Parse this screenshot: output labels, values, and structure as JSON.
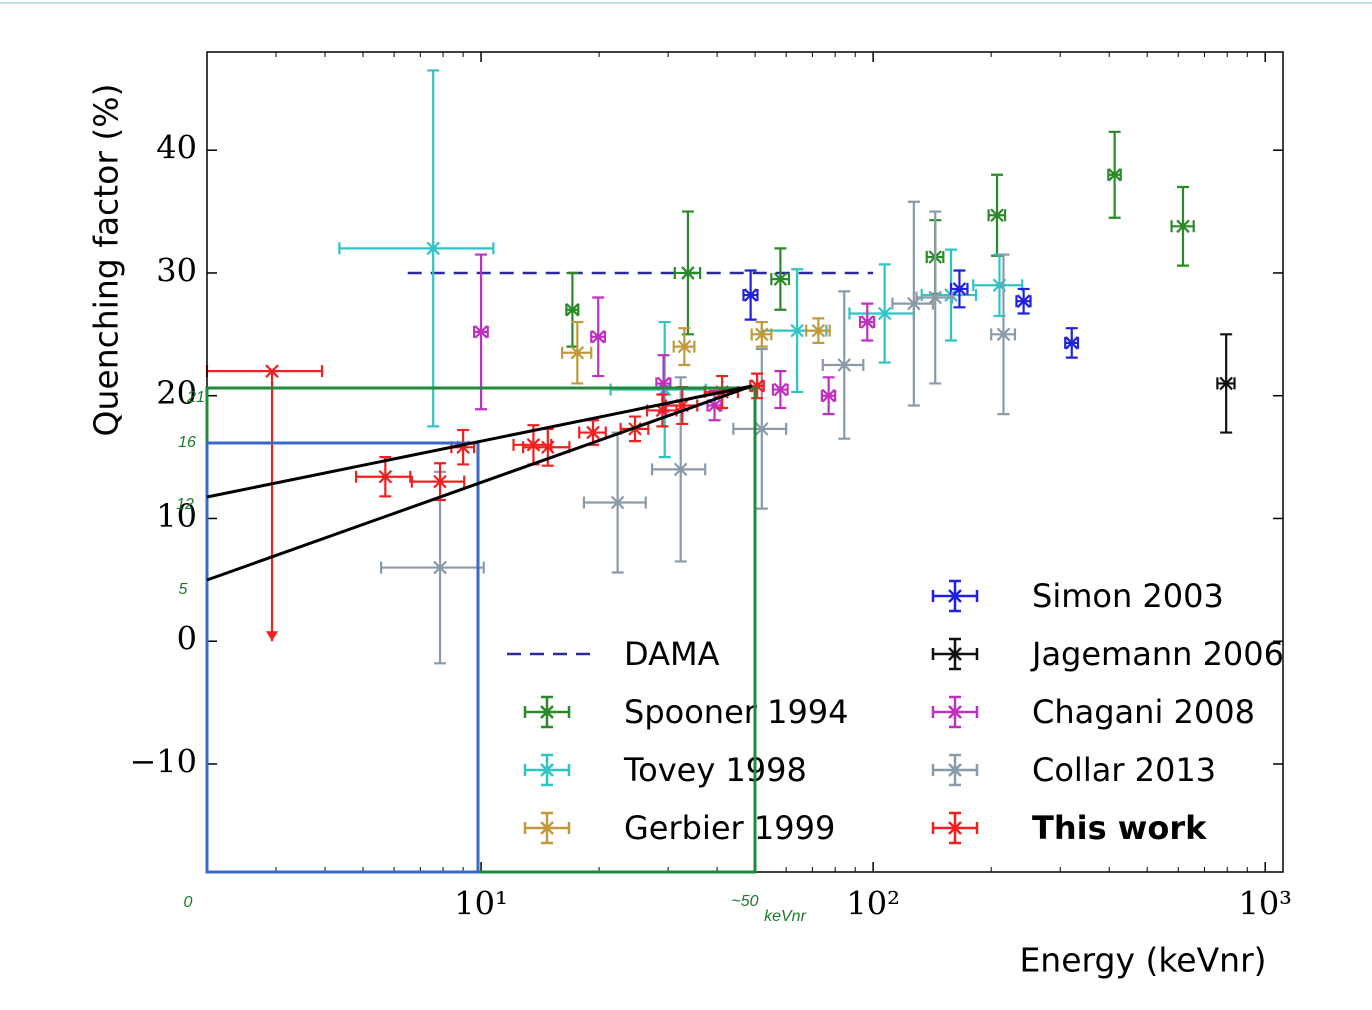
{
  "chart_data": {
    "type": "errorbar",
    "xlabel": "Energy (keVnr)",
    "ylabel": "Quenching factor (%)",
    "xscale": "log",
    "xlim": [
      2,
      1110
    ],
    "ylim": [
      -18.8,
      48
    ],
    "xticks": [
      {
        "value": 10,
        "label": "10¹"
      },
      {
        "value": 100,
        "label": "10²"
      },
      {
        "value": 1000,
        "label": "10³"
      }
    ],
    "xminorticks": [
      3,
      4,
      5,
      6,
      7,
      8,
      9,
      20,
      30,
      40,
      50,
      60,
      70,
      80,
      90,
      200,
      300,
      400,
      500,
      600,
      700,
      800,
      900
    ],
    "yticks": [
      {
        "value": -10,
        "label": "−10"
      },
      0,
      10,
      20,
      30,
      40
    ],
    "series": [
      {
        "name": "DAMA",
        "color": "#2a2a9a",
        "style": "dashed",
        "x": [
          6.5,
          100
        ],
        "values": [
          30,
          30
        ]
      },
      {
        "name": "Spooner 1994",
        "color": "#2a8a2a",
        "x": [
          17.1,
          33.7,
          58,
          144,
          207,
          413,
          617
        ],
        "values": [
          27,
          30,
          29.5,
          31.3,
          34.7,
          38,
          33.8
        ],
        "yerr": [
          3,
          5,
          2.5,
          3,
          3.3,
          3.5,
          3.2
        ],
        "xerr": [
          0.6,
          2.5,
          3,
          7,
          10,
          15,
          40
        ]
      },
      {
        "name": "Tovey 1998",
        "color": "#2ec4c4",
        "x": [
          7.55,
          29.4,
          64,
          107,
          158,
          210
        ],
        "values": [
          32,
          20.5,
          25.3,
          26.7,
          28.2,
          29
        ],
        "yerr": [
          14.5,
          5.5,
          5,
          4,
          3.7,
          2.5
        ],
        "xerr": [
          3.2,
          8,
          12,
          20,
          25,
          30
        ]
      },
      {
        "name": "Gerbier 1999",
        "color": "#c09a3a",
        "x": [
          17.6,
          33,
          52,
          72.5
        ],
        "values": [
          23.5,
          24,
          25,
          25.3
        ],
        "yerr": [
          2.5,
          1.5,
          1,
          1
        ],
        "xerr": [
          1.5,
          2,
          3,
          5
        ]
      },
      {
        "name": "Simon 2003",
        "color": "#2020e0",
        "x": [
          48.7,
          166,
          242,
          321
        ],
        "values": [
          28.2,
          28.7,
          27.7,
          24.3
        ],
        "yerr": [
          2,
          1.5,
          1,
          1.2
        ],
        "xerr": [
          2,
          8,
          10,
          12
        ]
      },
      {
        "name": "Jagemann 2006",
        "color": "#111111",
        "x": [
          795
        ],
        "values": [
          21
        ],
        "yerr": [
          4
        ],
        "xerr": [
          40
        ]
      },
      {
        "name": "Chagani 2008",
        "color": "#c030c0",
        "x": [
          10,
          19.9,
          29.2,
          39.4,
          58,
          77,
          96.6
        ],
        "values": [
          25.2,
          24.8,
          21,
          19.2,
          20.5,
          20,
          26
        ],
        "yerr": [
          6.3,
          3.2,
          2.3,
          1.2,
          1.5,
          1.5,
          1.5
        ],
        "xerr": [
          0.4,
          0.8,
          1.2,
          1.6,
          2.5,
          3,
          4
        ]
      },
      {
        "name": "Collar 2013",
        "color": "#8a9aa8",
        "x": [
          7.86,
          22.3,
          32.3,
          52,
          84.4,
          127,
          144,
          215
        ],
        "values": [
          6,
          11.3,
          14,
          17.3,
          22.5,
          27.5,
          28,
          25
        ],
        "yerr": [
          7.8,
          5.7,
          7.5,
          6.5,
          6,
          8.3,
          7,
          6.5
        ],
        "xerr": [
          2.3,
          4,
          5,
          8,
          10,
          15,
          15,
          15
        ]
      },
      {
        "name": "This work",
        "color": "#f02020",
        "x": [
          2.93,
          5.7,
          7.86,
          9.0,
          13.6,
          14.8,
          19.3,
          24.7,
          29,
          32.6,
          41.2,
          50.6
        ],
        "values": [
          22,
          13.4,
          13,
          15.8,
          16,
          15.8,
          17,
          17.3,
          18.8,
          19.2,
          20.3,
          20.8
        ],
        "yerr": [
          [
            22,
            0
          ],
          1.6,
          1.5,
          1.4,
          1.6,
          1.5,
          1,
          1,
          1.3,
          1.5,
          1.3,
          1
        ],
        "xerr": [
          1,
          0.9,
          1.2,
          0.6,
          1.5,
          2,
          1.5,
          2,
          2.5,
          3,
          4,
          2
        ]
      }
    ],
    "annotations": [
      "21",
      "16",
      "12",
      "5",
      "0",
      "~50",
      "keVnr"
    ]
  }
}
